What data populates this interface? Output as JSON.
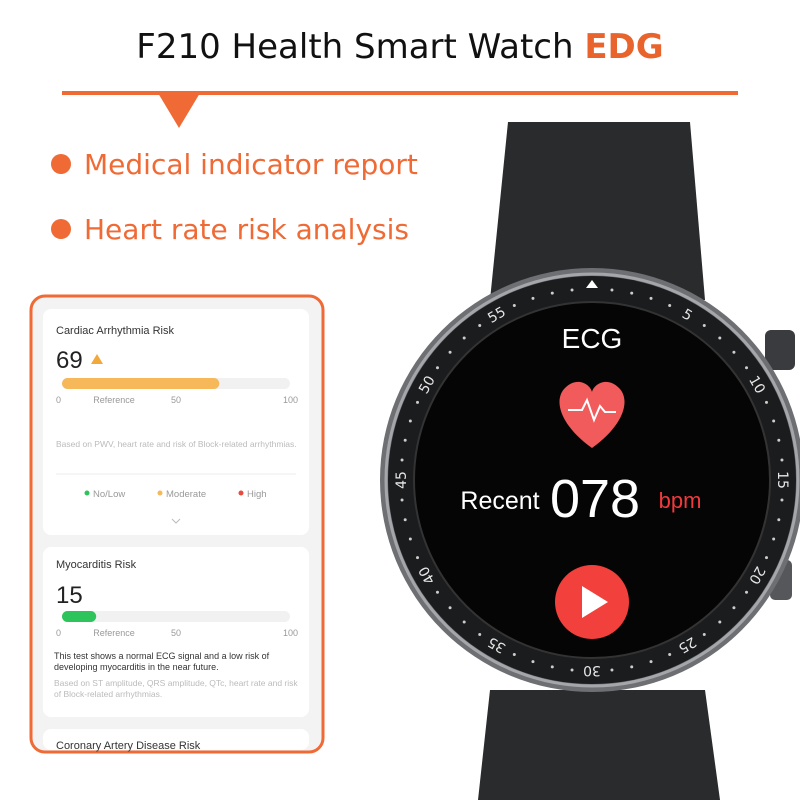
{
  "header": {
    "title": "F210 Health Smart Watch",
    "title_accent": "EDG"
  },
  "bullets": [
    "Medical indicator report",
    "Heart rate risk analysis"
  ],
  "report": {
    "cards": [
      {
        "title": "Cardiac Arrhythmia Risk",
        "score": 69,
        "scale_ticks": [
          0,
          50,
          100
        ],
        "scale_label": "Reference",
        "note": "Based on PWV, heart rate and risk of Block-related arrhythmias.",
        "legend": [
          "No/Low",
          "Moderate",
          "High"
        ]
      },
      {
        "title": "Myocarditis Risk",
        "score": 15,
        "scale_ticks": [
          0,
          50,
          100
        ],
        "scale_label": "Reference",
        "summary": "This test shows a normal ECG signal and a low risk of developing myocarditis in the near future.",
        "note": "Based on ST amplitude, QRS amplitude, QTc, heart rate and risk of Block-related arrhythmias."
      },
      {
        "title": "Coronary Artery Disease Risk"
      }
    ]
  },
  "watch": {
    "screen_title": "ECG",
    "recent_label": "Recent",
    "bpm_value": "078",
    "bpm_unit": "bpm",
    "bezel": [
      "5",
      "10",
      "15",
      "20",
      "25",
      "30",
      "35",
      "40",
      "45",
      "50",
      "55"
    ]
  }
}
